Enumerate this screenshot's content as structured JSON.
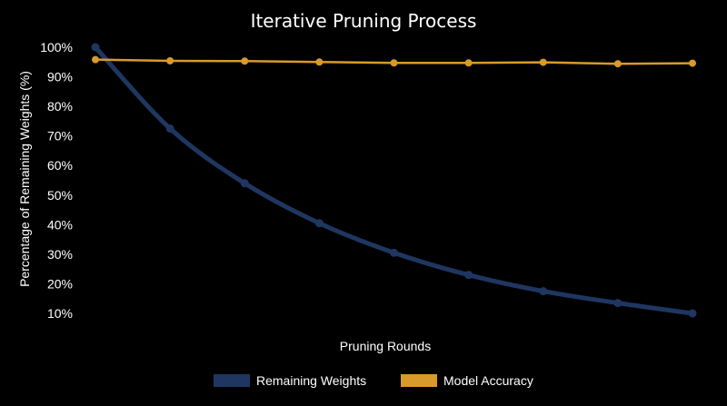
{
  "chart_data": {
    "type": "line",
    "title": "Iterative Pruning Process",
    "xlabel": "Pruning Rounds",
    "ylabel": "Percentage of Remaining Weights (%)",
    "ylim": [
      8,
      100
    ],
    "yticks": [
      "100%",
      "90%",
      "80%",
      "70%",
      "60%",
      "50%",
      "40%",
      "30%",
      "20%",
      "10%"
    ],
    "x": [
      0,
      1,
      2,
      3,
      4,
      5,
      6,
      7,
      8
    ],
    "grid": false,
    "legend_position": "bottom",
    "series": [
      {
        "name": "Remaining Weights",
        "color": "#1f3660",
        "values": [
          100,
          72.5,
          54,
          40.5,
          30.5,
          23,
          17.5,
          13.5,
          10
        ]
      },
      {
        "name": "Model Accuracy",
        "color": "#d89a2a",
        "values": [
          95.8,
          95.4,
          95.3,
          95,
          94.7,
          94.7,
          94.9,
          94.4,
          94.6
        ]
      }
    ]
  }
}
